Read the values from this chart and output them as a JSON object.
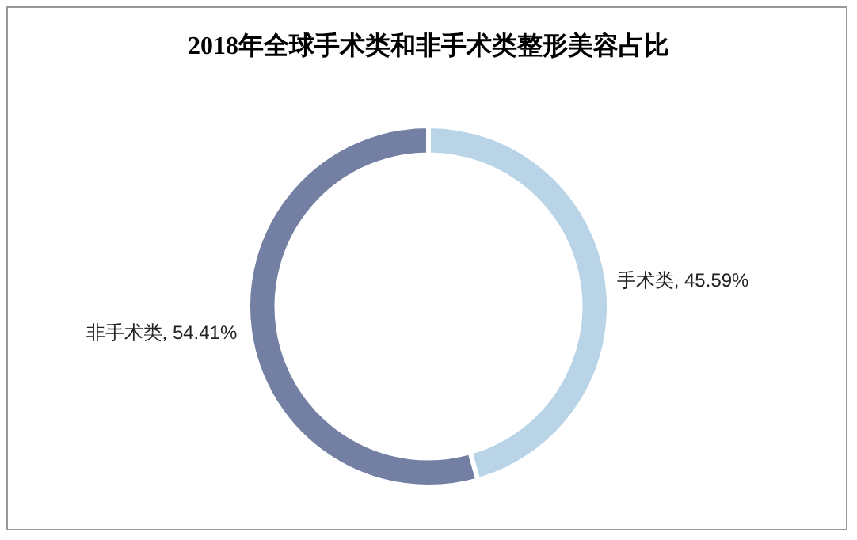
{
  "chart_data": {
    "type": "donut",
    "title": "2018年全球手术类和非手术类整形美容占比",
    "categories": [
      "手术类",
      "非手术类"
    ],
    "values": [
      45.59,
      54.41
    ],
    "value_labels": [
      "45.59%",
      "54.41%"
    ],
    "colors": [
      "#b8d4e6",
      "#737fa3"
    ],
    "legend": false
  }
}
